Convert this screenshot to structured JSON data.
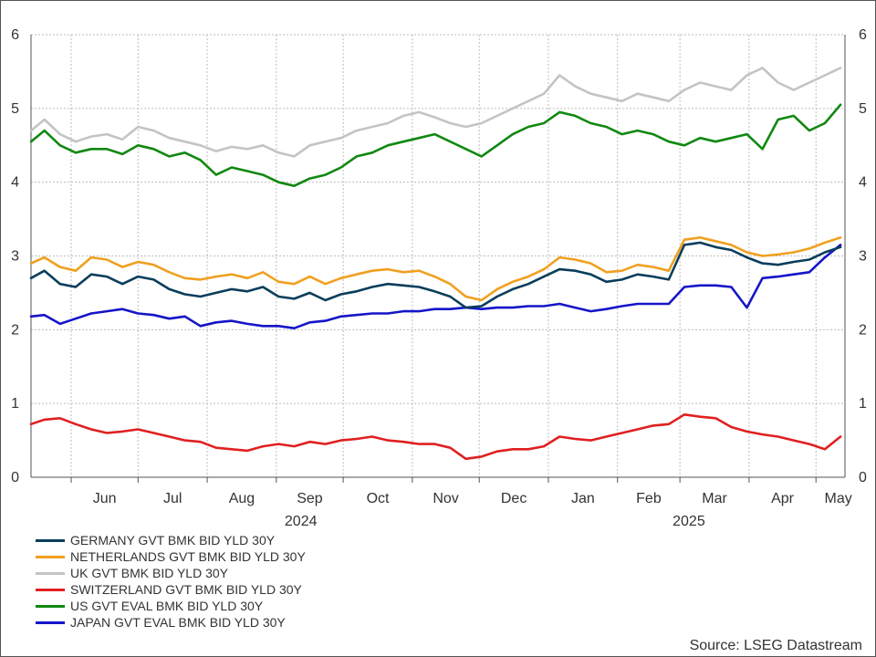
{
  "chart_data": {
    "type": "line",
    "title": "",
    "xlabel": "",
    "ylabel": "",
    "ylim": [
      0,
      6
    ],
    "y_ticks": [
      "0",
      "1",
      "2",
      "3",
      "4",
      "5",
      "6"
    ],
    "x_range": [
      "2024-05-14",
      "2025-05-14"
    ],
    "month_labels": [
      "Jun",
      "Jul",
      "Aug",
      "Sep",
      "Oct",
      "Nov",
      "Dec",
      "Jan",
      "Feb",
      "Mar",
      "Apr",
      "May"
    ],
    "year_labels": [
      "2024",
      "2025"
    ],
    "grid": true,
    "right_axis": true,
    "legend_position": "bottom-left",
    "series": [
      {
        "name": "GERMANY GVT BMK BID YLD 30Y",
        "color": "#0a3d5c",
        "x": [
          "2024-05-14",
          "2024-05-20",
          "2024-05-27",
          "2024-06-03",
          "2024-06-10",
          "2024-06-17",
          "2024-06-24",
          "2024-07-01",
          "2024-07-08",
          "2024-07-15",
          "2024-07-22",
          "2024-07-29",
          "2024-08-05",
          "2024-08-12",
          "2024-08-19",
          "2024-08-26",
          "2024-09-02",
          "2024-09-09",
          "2024-09-16",
          "2024-09-23",
          "2024-09-30",
          "2024-10-07",
          "2024-10-14",
          "2024-10-21",
          "2024-10-28",
          "2024-11-04",
          "2024-11-11",
          "2024-11-18",
          "2024-11-25",
          "2024-12-02",
          "2024-12-09",
          "2024-12-16",
          "2024-12-23",
          "2024-12-30",
          "2025-01-06",
          "2025-01-13",
          "2025-01-20",
          "2025-01-27",
          "2025-02-03",
          "2025-02-10",
          "2025-02-17",
          "2025-02-24",
          "2025-03-03",
          "2025-03-10",
          "2025-03-17",
          "2025-03-24",
          "2025-03-31",
          "2025-04-07",
          "2025-04-14",
          "2025-04-21",
          "2025-04-28",
          "2025-05-05",
          "2025-05-12"
        ],
        "values": [
          2.7,
          2.8,
          2.62,
          2.58,
          2.75,
          2.72,
          2.62,
          2.72,
          2.68,
          2.55,
          2.48,
          2.45,
          2.5,
          2.55,
          2.52,
          2.58,
          2.45,
          2.42,
          2.5,
          2.4,
          2.48,
          2.52,
          2.58,
          2.62,
          2.6,
          2.58,
          2.52,
          2.45,
          2.3,
          2.32,
          2.45,
          2.55,
          2.62,
          2.72,
          2.82,
          2.8,
          2.75,
          2.65,
          2.68,
          2.75,
          2.72,
          2.68,
          3.15,
          3.18,
          3.12,
          3.08,
          2.98,
          2.9,
          2.88,
          2.92,
          2.95,
          3.05,
          3.12
        ]
      },
      {
        "name": "NETHERLANDS GVT BMK BID YLD 30Y",
        "color": "#f0a020",
        "x": [
          "2024-05-14",
          "2024-05-20",
          "2024-05-27",
          "2024-06-03",
          "2024-06-10",
          "2024-06-17",
          "2024-06-24",
          "2024-07-01",
          "2024-07-08",
          "2024-07-15",
          "2024-07-22",
          "2024-07-29",
          "2024-08-05",
          "2024-08-12",
          "2024-08-19",
          "2024-08-26",
          "2024-09-02",
          "2024-09-09",
          "2024-09-16",
          "2024-09-23",
          "2024-09-30",
          "2024-10-07",
          "2024-10-14",
          "2024-10-21",
          "2024-10-28",
          "2024-11-04",
          "2024-11-11",
          "2024-11-18",
          "2024-11-25",
          "2024-12-02",
          "2024-12-09",
          "2024-12-16",
          "2024-12-23",
          "2024-12-30",
          "2025-01-06",
          "2025-01-13",
          "2025-01-20",
          "2025-01-27",
          "2025-02-03",
          "2025-02-10",
          "2025-02-17",
          "2025-02-24",
          "2025-03-03",
          "2025-03-10",
          "2025-03-17",
          "2025-03-24",
          "2025-03-31",
          "2025-04-07",
          "2025-04-14",
          "2025-04-21",
          "2025-04-28",
          "2025-05-05",
          "2025-05-12"
        ],
        "values": [
          2.9,
          2.98,
          2.85,
          2.8,
          2.98,
          2.95,
          2.85,
          2.92,
          2.88,
          2.78,
          2.7,
          2.68,
          2.72,
          2.75,
          2.7,
          2.78,
          2.65,
          2.62,
          2.72,
          2.62,
          2.7,
          2.75,
          2.8,
          2.82,
          2.78,
          2.8,
          2.72,
          2.62,
          2.45,
          2.4,
          2.55,
          2.65,
          2.72,
          2.82,
          2.98,
          2.95,
          2.9,
          2.78,
          2.8,
          2.88,
          2.85,
          2.8,
          3.22,
          3.25,
          3.2,
          3.15,
          3.05,
          3.0,
          3.02,
          3.05,
          3.1,
          3.18,
          3.25
        ]
      },
      {
        "name": "UK GVT BMK BID YLD 30Y",
        "color": "#c4c4c4",
        "x": [
          "2024-05-14",
          "2024-05-20",
          "2024-05-27",
          "2024-06-03",
          "2024-06-10",
          "2024-06-17",
          "2024-06-24",
          "2024-07-01",
          "2024-07-08",
          "2024-07-15",
          "2024-07-22",
          "2024-07-29",
          "2024-08-05",
          "2024-08-12",
          "2024-08-19",
          "2024-08-26",
          "2024-09-02",
          "2024-09-09",
          "2024-09-16",
          "2024-09-23",
          "2024-09-30",
          "2024-10-07",
          "2024-10-14",
          "2024-10-21",
          "2024-10-28",
          "2024-11-04",
          "2024-11-11",
          "2024-11-18",
          "2024-11-25",
          "2024-12-02",
          "2024-12-09",
          "2024-12-16",
          "2024-12-23",
          "2024-12-30",
          "2025-01-06",
          "2025-01-13",
          "2025-01-20",
          "2025-01-27",
          "2025-02-03",
          "2025-02-10",
          "2025-02-17",
          "2025-02-24",
          "2025-03-03",
          "2025-03-10",
          "2025-03-17",
          "2025-03-24",
          "2025-03-31",
          "2025-04-07",
          "2025-04-14",
          "2025-04-21",
          "2025-04-28",
          "2025-05-05",
          "2025-05-12"
        ],
        "values": [
          4.7,
          4.85,
          4.65,
          4.55,
          4.62,
          4.65,
          4.58,
          4.75,
          4.7,
          4.6,
          4.55,
          4.5,
          4.42,
          4.48,
          4.45,
          4.5,
          4.4,
          4.35,
          4.5,
          4.55,
          4.6,
          4.7,
          4.75,
          4.8,
          4.9,
          4.95,
          4.88,
          4.8,
          4.75,
          4.8,
          4.9,
          5.0,
          5.1,
          5.2,
          5.45,
          5.3,
          5.2,
          5.15,
          5.1,
          5.2,
          5.15,
          5.1,
          5.25,
          5.35,
          5.3,
          5.25,
          5.45,
          5.55,
          5.35,
          5.25,
          5.35,
          5.45,
          5.55
        ]
      },
      {
        "name": "SWITZERLAND GVT BMK BID YLD 30Y",
        "color": "#e02020",
        "x": [
          "2024-05-14",
          "2024-05-20",
          "2024-05-27",
          "2024-06-03",
          "2024-06-10",
          "2024-06-17",
          "2024-06-24",
          "2024-07-01",
          "2024-07-08",
          "2024-07-15",
          "2024-07-22",
          "2024-07-29",
          "2024-08-05",
          "2024-08-12",
          "2024-08-19",
          "2024-08-26",
          "2024-09-02",
          "2024-09-09",
          "2024-09-16",
          "2024-09-23",
          "2024-09-30",
          "2024-10-07",
          "2024-10-14",
          "2024-10-21",
          "2024-10-28",
          "2024-11-04",
          "2024-11-11",
          "2024-11-18",
          "2024-11-25",
          "2024-12-02",
          "2024-12-09",
          "2024-12-16",
          "2024-12-23",
          "2024-12-30",
          "2025-01-06",
          "2025-01-13",
          "2025-01-20",
          "2025-01-27",
          "2025-02-03",
          "2025-02-10",
          "2025-02-17",
          "2025-02-24",
          "2025-03-03",
          "2025-03-10",
          "2025-03-17",
          "2025-03-24",
          "2025-03-31",
          "2025-04-07",
          "2025-04-14",
          "2025-04-21",
          "2025-04-28",
          "2025-05-05",
          "2025-05-12"
        ],
        "values": [
          0.72,
          0.78,
          0.8,
          0.72,
          0.65,
          0.6,
          0.62,
          0.65,
          0.6,
          0.55,
          0.5,
          0.48,
          0.4,
          0.38,
          0.36,
          0.42,
          0.45,
          0.42,
          0.48,
          0.45,
          0.5,
          0.52,
          0.55,
          0.5,
          0.48,
          0.45,
          0.45,
          0.4,
          0.25,
          0.28,
          0.35,
          0.38,
          0.38,
          0.42,
          0.55,
          0.52,
          0.5,
          0.55,
          0.6,
          0.65,
          0.7,
          0.72,
          0.85,
          0.82,
          0.8,
          0.68,
          0.62,
          0.58,
          0.55,
          0.5,
          0.45,
          0.38,
          0.55
        ]
      },
      {
        "name": "US GVT EVAL BMK BID YLD 30Y",
        "color": "#118811",
        "x": [
          "2024-05-14",
          "2024-05-20",
          "2024-05-27",
          "2024-06-03",
          "2024-06-10",
          "2024-06-17",
          "2024-06-24",
          "2024-07-01",
          "2024-07-08",
          "2024-07-15",
          "2024-07-22",
          "2024-07-29",
          "2024-08-05",
          "2024-08-12",
          "2024-08-19",
          "2024-08-26",
          "2024-09-02",
          "2024-09-09",
          "2024-09-16",
          "2024-09-23",
          "2024-09-30",
          "2024-10-07",
          "2024-10-14",
          "2024-10-21",
          "2024-10-28",
          "2024-11-04",
          "2024-11-11",
          "2024-11-18",
          "2024-11-25",
          "2024-12-02",
          "2024-12-09",
          "2024-12-16",
          "2024-12-23",
          "2024-12-30",
          "2025-01-06",
          "2025-01-13",
          "2025-01-20",
          "2025-01-27",
          "2025-02-03",
          "2025-02-10",
          "2025-02-17",
          "2025-02-24",
          "2025-03-03",
          "2025-03-10",
          "2025-03-17",
          "2025-03-24",
          "2025-03-31",
          "2025-04-07",
          "2025-04-14",
          "2025-04-21",
          "2025-04-28",
          "2025-05-05",
          "2025-05-12"
        ],
        "values": [
          4.55,
          4.7,
          4.5,
          4.4,
          4.45,
          4.45,
          4.38,
          4.5,
          4.45,
          4.35,
          4.4,
          4.3,
          4.1,
          4.2,
          4.15,
          4.1,
          4.0,
          3.95,
          4.05,
          4.1,
          4.2,
          4.35,
          4.4,
          4.5,
          4.55,
          4.6,
          4.65,
          4.55,
          4.45,
          4.35,
          4.5,
          4.65,
          4.75,
          4.8,
          4.95,
          4.9,
          4.8,
          4.75,
          4.65,
          4.7,
          4.65,
          4.55,
          4.5,
          4.6,
          4.55,
          4.6,
          4.65,
          4.45,
          4.85,
          4.9,
          4.7,
          4.8,
          5.05
        ]
      },
      {
        "name": "JAPAN GVT EVAL BMK BID YLD 30Y",
        "color": "#1515c8",
        "x": [
          "2024-05-14",
          "2024-05-20",
          "2024-05-27",
          "2024-06-03",
          "2024-06-10",
          "2024-06-17",
          "2024-06-24",
          "2024-07-01",
          "2024-07-08",
          "2024-07-15",
          "2024-07-22",
          "2024-07-29",
          "2024-08-05",
          "2024-08-12",
          "2024-08-19",
          "2024-08-26",
          "2024-09-02",
          "2024-09-09",
          "2024-09-16",
          "2024-09-23",
          "2024-09-30",
          "2024-10-07",
          "2024-10-14",
          "2024-10-21",
          "2024-10-28",
          "2024-11-04",
          "2024-11-11",
          "2024-11-18",
          "2024-11-25",
          "2024-12-02",
          "2024-12-09",
          "2024-12-16",
          "2024-12-23",
          "2024-12-30",
          "2025-01-06",
          "2025-01-13",
          "2025-01-20",
          "2025-01-27",
          "2025-02-03",
          "2025-02-10",
          "2025-02-17",
          "2025-02-24",
          "2025-03-03",
          "2025-03-10",
          "2025-03-17",
          "2025-03-24",
          "2025-03-31",
          "2025-04-07",
          "2025-04-14",
          "2025-04-21",
          "2025-04-28",
          "2025-05-05",
          "2025-05-12"
        ],
        "values": [
          2.18,
          2.2,
          2.08,
          2.15,
          2.22,
          2.25,
          2.28,
          2.22,
          2.2,
          2.15,
          2.18,
          2.05,
          2.1,
          2.12,
          2.08,
          2.05,
          2.05,
          2.02,
          2.1,
          2.12,
          2.18,
          2.2,
          2.22,
          2.22,
          2.25,
          2.25,
          2.28,
          2.28,
          2.3,
          2.28,
          2.3,
          2.3,
          2.32,
          2.32,
          2.35,
          2.3,
          2.25,
          2.28,
          2.32,
          2.35,
          2.35,
          2.35,
          2.58,
          2.6,
          2.6,
          2.58,
          2.3,
          2.7,
          2.72,
          2.75,
          2.78,
          2.98,
          3.15
        ]
      }
    ]
  },
  "source_text": "Source: LSEG Datastream"
}
